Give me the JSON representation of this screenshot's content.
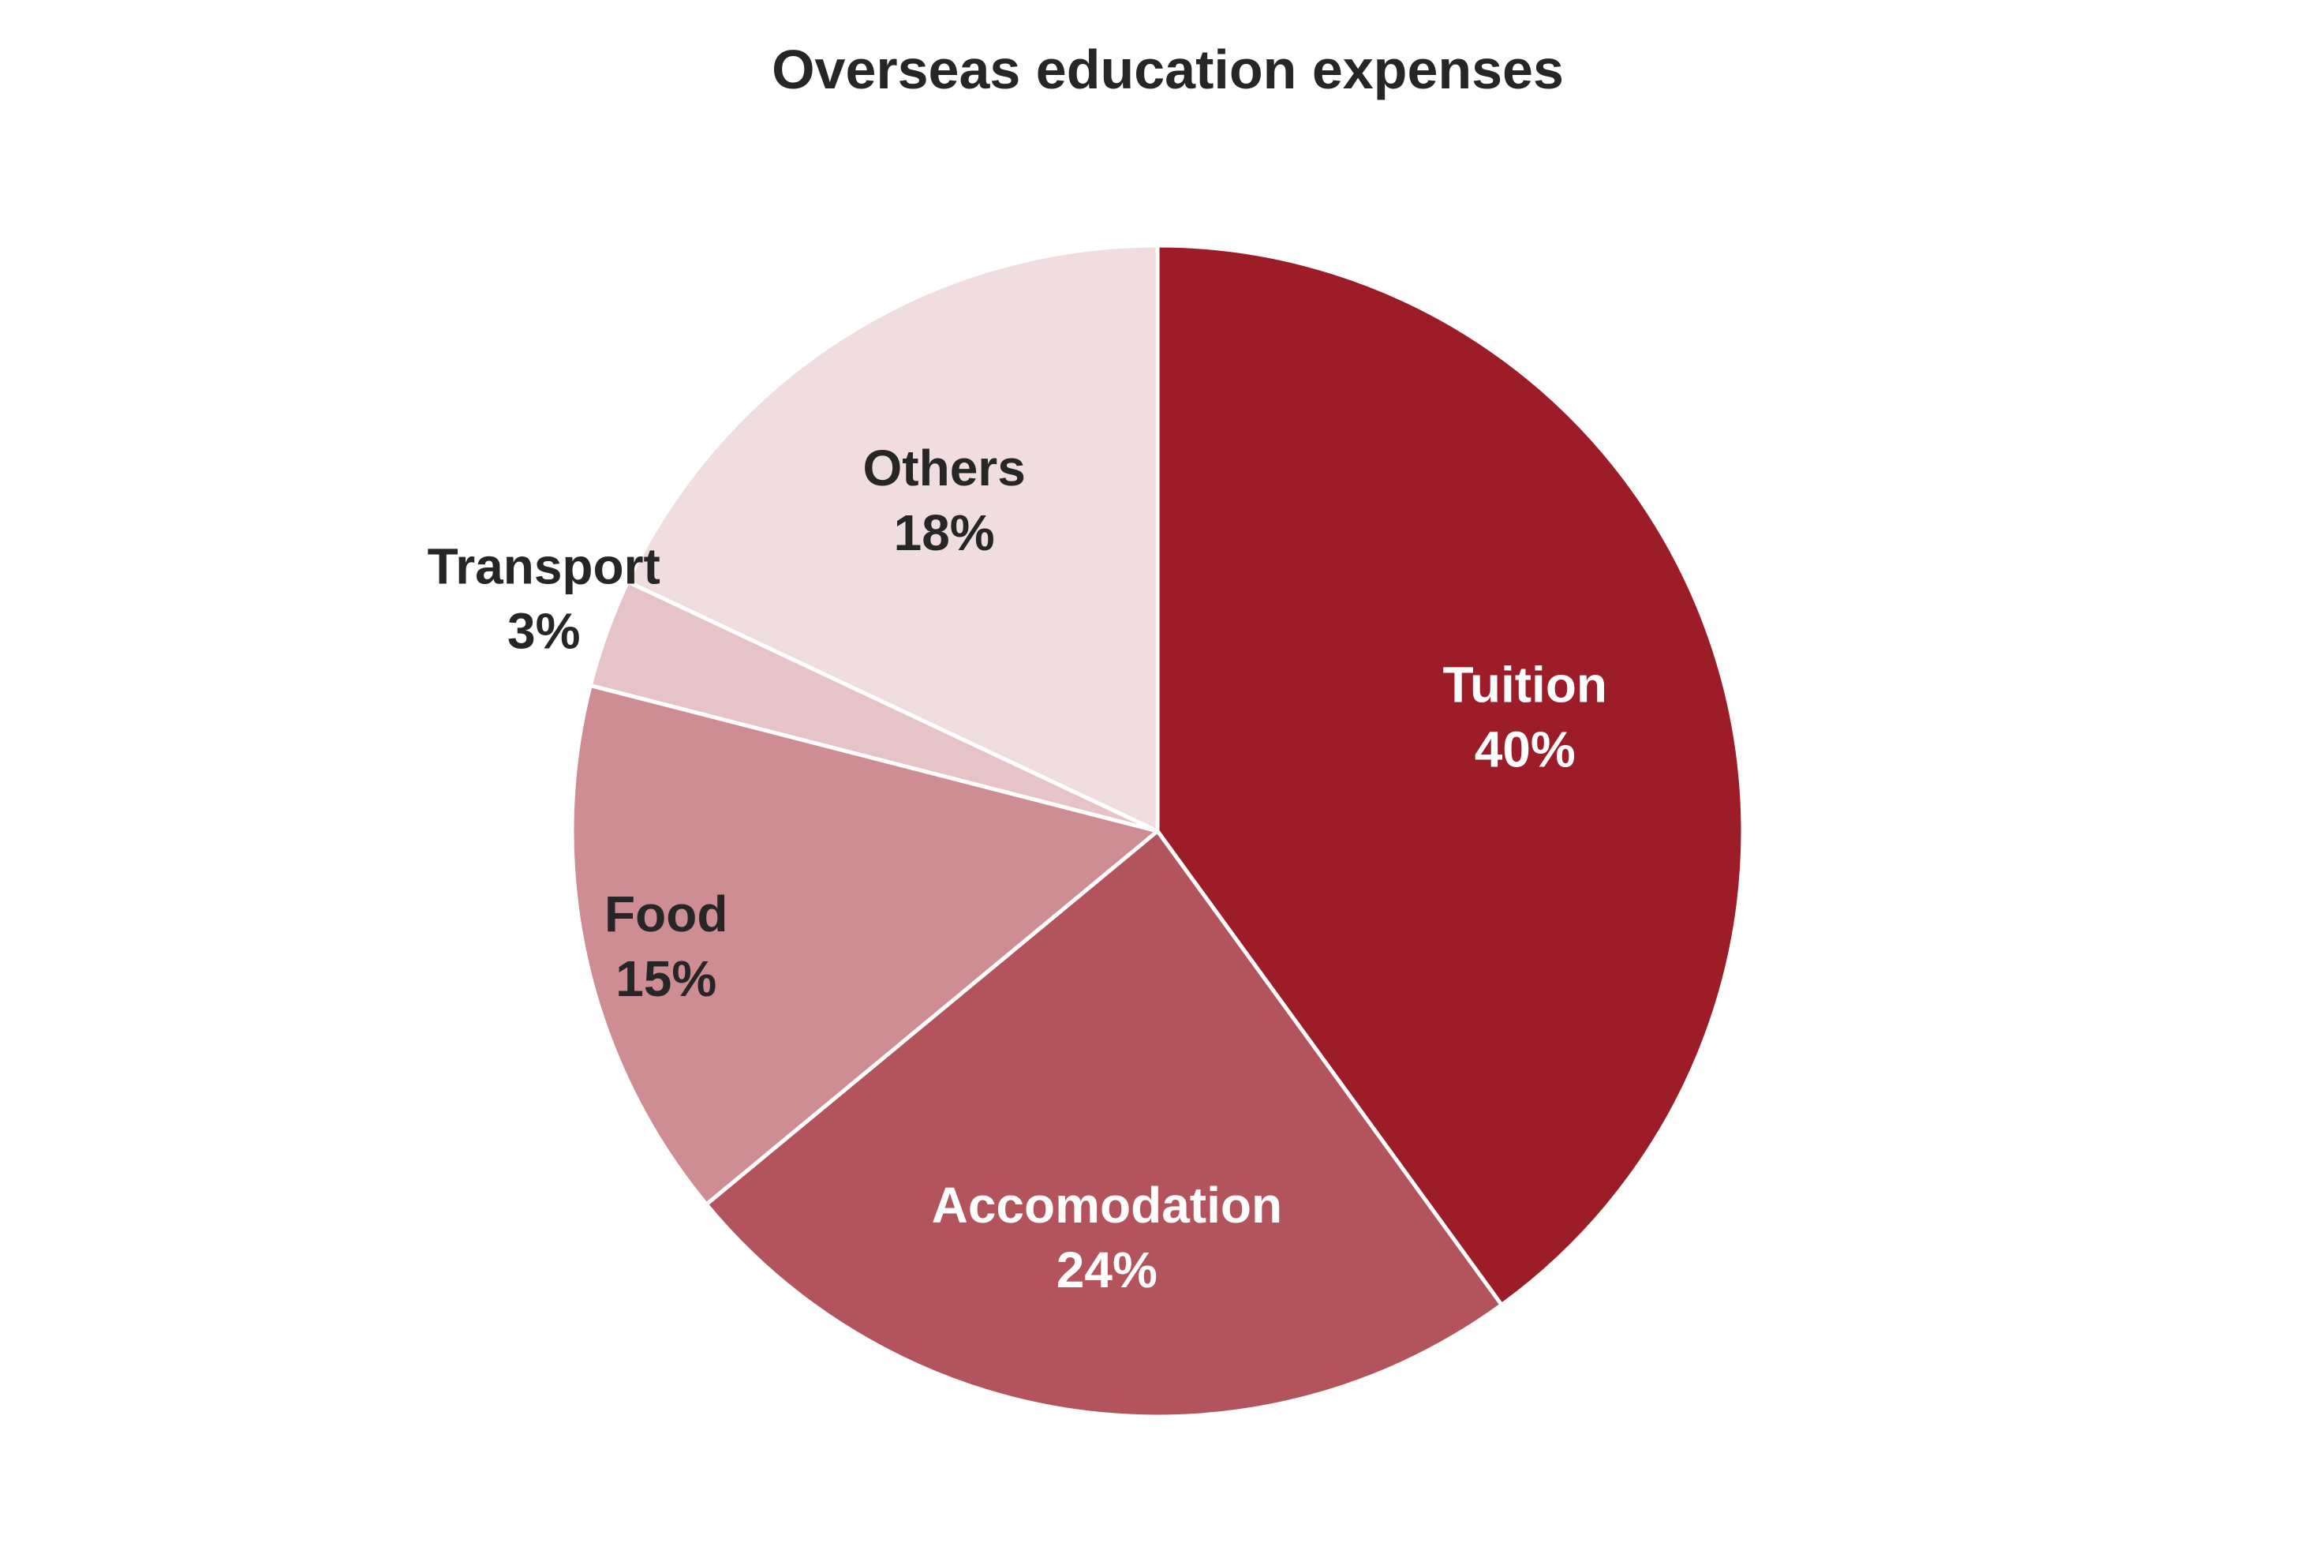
{
  "chart_data": {
    "type": "pie",
    "title": "Overseas education expenses",
    "start_angle_deg": 0,
    "direction": "clockwise",
    "slices": [
      {
        "name": "Tuition",
        "value": 40,
        "label": "40%",
        "color": "#9C1C28",
        "label_color": "#FFFFFF"
      },
      {
        "name": "Accomodation",
        "value": 24,
        "label": "24%",
        "color": "#B3535B",
        "label_color": "#FFFFFF"
      },
      {
        "name": "Food",
        "value": 15,
        "label": "15%",
        "color": "#CE8D93",
        "label_color": "#262626"
      },
      {
        "name": "Transport",
        "value": 3,
        "label": "3%",
        "color": "#E6C3C7",
        "label_color": "#262626"
      },
      {
        "name": "Others",
        "value": 18,
        "label": "18%",
        "color": "#F0DDE0",
        "label_color": "#262626"
      }
    ],
    "legend": "none",
    "slice_border_color": "#FFFFFF"
  }
}
